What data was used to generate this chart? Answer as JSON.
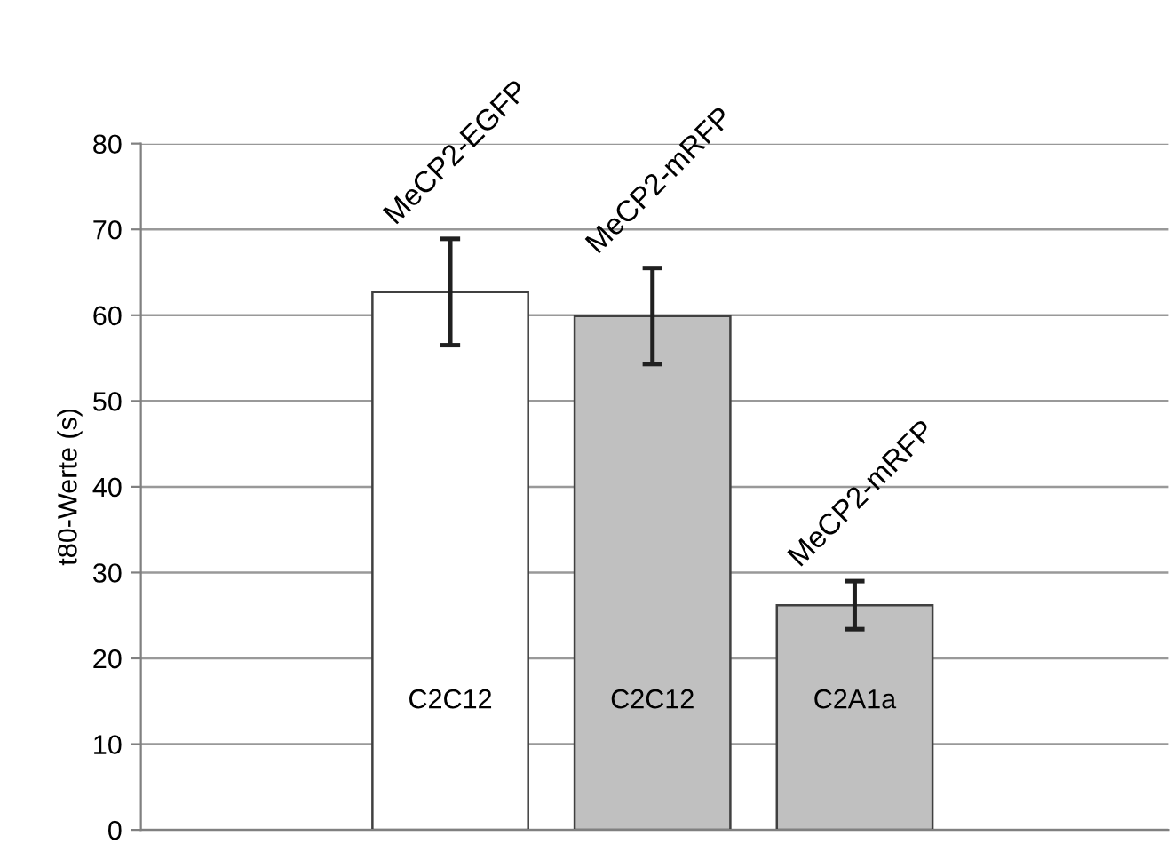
{
  "chart_data": {
    "type": "bar",
    "ylabel": "t80-Werte (s)",
    "categories": [
      "C2C12",
      "C2C12",
      "C2A1a"
    ],
    "values": [
      62.7,
      59.9,
      26.2
    ],
    "errors": [
      6.2,
      5.6,
      2.8
    ],
    "colors": [
      "#ffffff",
      "#c0c0c0",
      "#c0c0c0"
    ],
    "annotations": [
      "MeCP2-EGFP",
      "MeCP2-mRFP",
      "MeCP2-mRFP"
    ],
    "ylim": [
      0,
      80
    ],
    "yticks": [
      0,
      10,
      20,
      30,
      40,
      50,
      60,
      70,
      80
    ],
    "grid": "y"
  }
}
